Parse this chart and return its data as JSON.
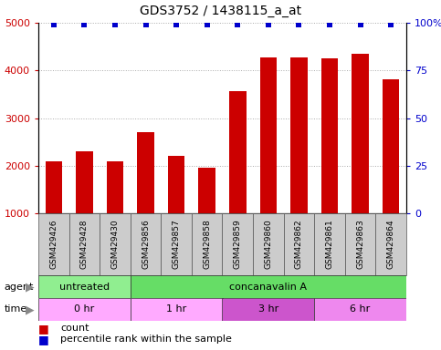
{
  "title": "GDS3752 / 1438115_a_at",
  "samples": [
    "GSM429426",
    "GSM429428",
    "GSM429430",
    "GSM429856",
    "GSM429857",
    "GSM429858",
    "GSM429859",
    "GSM429860",
    "GSM429862",
    "GSM429861",
    "GSM429863",
    "GSM429864"
  ],
  "counts": [
    2100,
    2300,
    2100,
    2700,
    2200,
    1950,
    3570,
    4280,
    4280,
    4260,
    4350,
    3820
  ],
  "bar_color": "#cc0000",
  "dot_color": "#0000cc",
  "ylim_left": [
    1000,
    5000
  ],
  "ylim_right": [
    0,
    100
  ],
  "yticks_left": [
    1000,
    2000,
    3000,
    4000,
    5000
  ],
  "yticks_right": [
    0,
    25,
    50,
    75,
    100
  ],
  "agent_labels": [
    {
      "label": "untreated",
      "start": 0,
      "end": 3,
      "color": "#90ee90"
    },
    {
      "label": "concanavalin A",
      "start": 3,
      "end": 12,
      "color": "#66dd66"
    }
  ],
  "time_labels": [
    {
      "label": "0 hr",
      "start": 0,
      "end": 3,
      "color": "#ffaaff"
    },
    {
      "label": "1 hr",
      "start": 3,
      "end": 6,
      "color": "#ffaaff"
    },
    {
      "label": "3 hr",
      "start": 6,
      "end": 9,
      "color": "#cc55cc"
    },
    {
      "label": "6 hr",
      "start": 9,
      "end": 12,
      "color": "#ee88ee"
    }
  ],
  "legend_count_color": "#cc0000",
  "legend_dot_color": "#0000cc",
  "bg_color": "#ffffff",
  "grid_color": "#888888",
  "tick_color_left": "#cc0000",
  "tick_color_right": "#0000cc",
  "xtick_bg_color": "#cccccc",
  "fig_w": 483,
  "fig_h": 384
}
